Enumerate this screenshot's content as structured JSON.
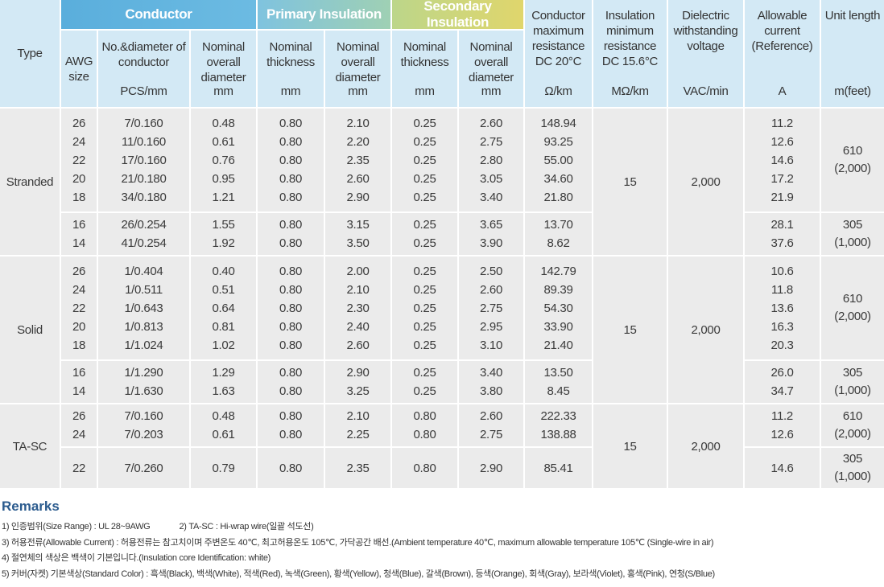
{
  "header": {
    "groups": [
      "Conductor",
      "Primary Insulation",
      "Secondary Insulation"
    ],
    "columns": [
      {
        "label": "Type"
      },
      {
        "label": "AWG size"
      },
      {
        "label": "No.&diameter of conductor",
        "unit": "PCS/mm"
      },
      {
        "label": "Nominal overall diameter",
        "unit": "mm"
      },
      {
        "label": "Nominal thickness",
        "unit": "mm"
      },
      {
        "label": "Nominal overall diameter",
        "unit": "mm"
      },
      {
        "label": "Nominal thickness",
        "unit": "mm"
      },
      {
        "label": "Nominal overall diameter",
        "unit": "mm"
      },
      {
        "label": "Conductor maximum resistance DC 20°C",
        "unit": "Ω/km"
      },
      {
        "label": "Insulation minimum resistance DC 15.6°C",
        "unit": "MΩ/km"
      },
      {
        "label": "Dielectric withstanding voltage",
        "unit": "VAC/min"
      },
      {
        "label": "Allowable current (Reference)",
        "unit": "A"
      },
      {
        "label": "Unit length",
        "unit": "m(feet)"
      }
    ]
  },
  "sections": [
    {
      "type": "Stranded",
      "insulation_resistance": "15",
      "voltage": "2,000",
      "groups": [
        {
          "unit_length": [
            "610",
            "(2,000)"
          ],
          "rows": [
            [
              "26",
              "7/0.160",
              "0.48",
              "0.80",
              "2.10",
              "0.25",
              "2.60",
              "148.94",
              "11.2"
            ],
            [
              "24",
              "11/0.160",
              "0.61",
              "0.80",
              "2.20",
              "0.25",
              "2.75",
              "93.25",
              "12.6"
            ],
            [
              "22",
              "17/0.160",
              "0.76",
              "0.80",
              "2.35",
              "0.25",
              "2.80",
              "55.00",
              "14.6"
            ],
            [
              "20",
              "21/0.180",
              "0.95",
              "0.80",
              "2.60",
              "0.25",
              "3.05",
              "34.60",
              "17.2"
            ],
            [
              "18",
              "34/0.180",
              "1.21",
              "0.80",
              "2.90",
              "0.25",
              "3.40",
              "21.80",
              "21.9"
            ]
          ]
        },
        {
          "unit_length": [
            "305",
            "(1,000)"
          ],
          "rows": [
            [
              "16",
              "26/0.254",
              "1.55",
              "0.80",
              "3.15",
              "0.25",
              "3.65",
              "13.70",
              "28.1"
            ],
            [
              "14",
              "41/0.254",
              "1.92",
              "0.80",
              "3.50",
              "0.25",
              "3.90",
              "8.62",
              "37.6"
            ]
          ]
        }
      ]
    },
    {
      "type": "Solid",
      "insulation_resistance": "15",
      "voltage": "2,000",
      "groups": [
        {
          "unit_length": [
            "610",
            "(2,000)"
          ],
          "rows": [
            [
              "26",
              "1/0.404",
              "0.40",
              "0.80",
              "2.00",
              "0.25",
              "2.50",
              "142.79",
              "10.6"
            ],
            [
              "24",
              "1/0.511",
              "0.51",
              "0.80",
              "2.10",
              "0.25",
              "2.60",
              "89.39",
              "11.8"
            ],
            [
              "22",
              "1/0.643",
              "0.64",
              "0.80",
              "2.30",
              "0.25",
              "2.75",
              "54.30",
              "13.6"
            ],
            [
              "20",
              "1/0.813",
              "0.81",
              "0.80",
              "2.40",
              "0.25",
              "2.95",
              "33.90",
              "16.3"
            ],
            [
              "18",
              "1/1.024",
              "1.02",
              "0.80",
              "2.60",
              "0.25",
              "3.10",
              "21.40",
              "20.3"
            ]
          ]
        },
        {
          "unit_length": [
            "305",
            "(1,000)"
          ],
          "rows": [
            [
              "16",
              "1/1.290",
              "1.29",
              "0.80",
              "2.90",
              "0.25",
              "3.40",
              "13.50",
              "26.0"
            ],
            [
              "14",
              "1/1.630",
              "1.63",
              "0.80",
              "3.25",
              "0.25",
              "3.80",
              "8.45",
              "34.7"
            ]
          ]
        }
      ]
    },
    {
      "type": "TA-SC",
      "insulation_resistance": "15",
      "voltage": "2,000",
      "groups": [
        {
          "unit_length": [
            "610",
            "(2,000)"
          ],
          "rows": [
            [
              "26",
              "7/0.160",
              "0.48",
              "0.80",
              "2.10",
              "0.80",
              "2.60",
              "222.33",
              "11.2"
            ],
            [
              "24",
              "7/0.203",
              "0.61",
              "0.80",
              "2.25",
              "0.80",
              "2.75",
              "138.88",
              "12.6"
            ]
          ]
        },
        {
          "unit_length": [
            "305",
            "(1,000)"
          ],
          "rows": [
            [
              "22",
              "7/0.260",
              "0.79",
              "0.80",
              "2.35",
              "0.80",
              "2.90",
              "85.41",
              "14.6"
            ]
          ]
        }
      ]
    }
  ],
  "remarks": {
    "title": "Remarks",
    "lines": [
      [
        "1) 인증범위(Size Range) : UL 28~9AWG",
        "2) TA-SC : Hi-wrap wire(일괄 석도선)"
      ],
      [
        "3) 허용전류(Allowable Current) : 허용전류는 참고치이며 주변온도 40℃, 최고허용온도 105℃, 가닥공간 배선.(Ambient temperature 40℃, maximum allowable temperature 105℃ (Single-wire in air)"
      ],
      [
        "4) 절연체의 색상은 백색이 기본입니다.(Insulation core Identification: white)"
      ],
      [
        "5) 커버(자켓) 기본색상(Standard Color) : 흑색(Black), 백색(White), 적색(Red), 녹색(Green), 황색(Yellow), 청색(Blue), 갈색(Brown), 등색(Orange), 회색(Gray), 보라색(Violet), 홍색(Pink), 연청(S/Blue)"
      ]
    ]
  }
}
